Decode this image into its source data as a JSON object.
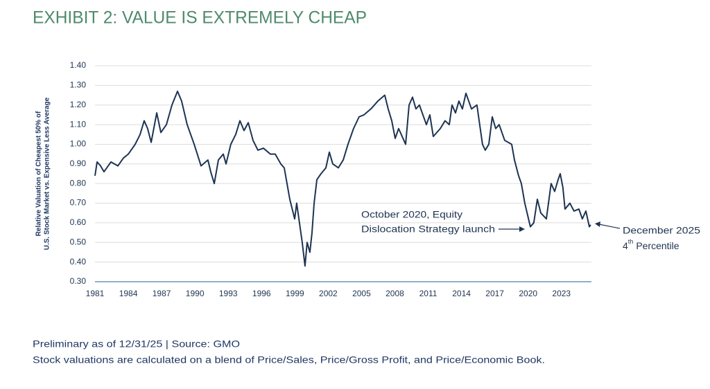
{
  "chart_data": {
    "type": "line",
    "title": "EXHIBIT 2: VALUE IS EXTREMELY CHEAP",
    "y_label": [
      "Relative Valuation of Cheapest 50% of",
      "U.S. Stock Market vs. Expensive Less Average"
    ],
    "color": "#1c3352",
    "grid": true,
    "xlim": [
      1981,
      2025.7
    ],
    "xticks": [
      1981,
      1984,
      1987,
      1990,
      1993,
      1996,
      1999,
      2002,
      2005,
      2008,
      2011,
      2014,
      2017,
      2020,
      2023
    ],
    "ylim": [
      0.3,
      1.4
    ],
    "yticks": [
      {
        "value": 0.3,
        "label": "0.30"
      },
      {
        "value": 0.4,
        "label": "0.40"
      },
      {
        "value": 0.5,
        "label": "0.50"
      },
      {
        "value": 0.6,
        "label": "0.60"
      },
      {
        "value": 0.7,
        "label": "0.70"
      },
      {
        "value": 0.8,
        "label": "0.80"
      },
      {
        "value": 0.9,
        "label": "0.90"
      },
      {
        "value": 1.0,
        "label": "1.00"
      },
      {
        "value": 1.1,
        "label": "1.10"
      },
      {
        "value": 1.2,
        "label": "1.20"
      },
      {
        "value": 1.3,
        "label": "1.30"
      },
      {
        "value": 1.4,
        "label": "1.40"
      }
    ],
    "x": [
      1981.0,
      1981.19,
      1981.5,
      1981.81,
      1982.44,
      1983.06,
      1983.56,
      1984.0,
      1984.62,
      1985.06,
      1985.43,
      1985.74,
      1986.06,
      1986.56,
      1986.93,
      1987.43,
      1987.93,
      1988.43,
      1988.8,
      1989.3,
      1989.93,
      1990.55,
      1991.17,
      1991.42,
      1991.74,
      1992.11,
      1992.55,
      1992.8,
      1993.23,
      1993.67,
      1994.05,
      1994.42,
      1994.8,
      1995.23,
      1995.67,
      1996.17,
      1996.79,
      1997.23,
      1997.73,
      1998.04,
      1998.29,
      1998.54,
      1998.98,
      1999.16,
      1999.41,
      1999.66,
      1999.91,
      2000.1,
      2000.35,
      2000.54,
      2000.73,
      2000.98,
      2001.35,
      2001.79,
      2002.1,
      2002.41,
      2002.91,
      2003.35,
      2003.78,
      2004.28,
      2004.78,
      2005.22,
      2005.84,
      2006.47,
      2007.09,
      2007.4,
      2007.72,
      2008.03,
      2008.34,
      2008.97,
      2009.28,
      2009.59,
      2009.9,
      2010.21,
      2010.84,
      2011.15,
      2011.46,
      2012.09,
      2012.52,
      2012.9,
      2013.15,
      2013.46,
      2013.77,
      2014.08,
      2014.4,
      2014.9,
      2015.39,
      2015.64,
      2015.89,
      2016.14,
      2016.46,
      2016.77,
      2017.08,
      2017.39,
      2017.89,
      2018.52,
      2018.77,
      2019.14,
      2019.39,
      2019.7,
      2020.2,
      2020.51,
      2020.83,
      2021.14,
      2021.64,
      2022.07,
      2022.39,
      2022.7,
      2022.89,
      2023.13,
      2023.32,
      2023.76,
      2024.13,
      2024.57,
      2024.88,
      2025.2,
      2025.51,
      2025.63
    ],
    "values": [
      0.84,
      0.91,
      0.89,
      0.86,
      0.91,
      0.89,
      0.93,
      0.95,
      1.0,
      1.05,
      1.12,
      1.08,
      1.01,
      1.16,
      1.06,
      1.1,
      1.2,
      1.27,
      1.22,
      1.1,
      1.0,
      0.89,
      0.92,
      0.86,
      0.8,
      0.92,
      0.95,
      0.9,
      1.0,
      1.05,
      1.12,
      1.07,
      1.11,
      1.02,
      0.97,
      0.98,
      0.95,
      0.95,
      0.9,
      0.88,
      0.8,
      0.72,
      0.62,
      0.7,
      0.6,
      0.5,
      0.38,
      0.5,
      0.45,
      0.55,
      0.7,
      0.82,
      0.85,
      0.88,
      0.96,
      0.9,
      0.88,
      0.92,
      1.0,
      1.08,
      1.14,
      1.15,
      1.18,
      1.22,
      1.25,
      1.18,
      1.12,
      1.03,
      1.08,
      1.0,
      1.2,
      1.24,
      1.18,
      1.2,
      1.1,
      1.15,
      1.04,
      1.08,
      1.12,
      1.1,
      1.2,
      1.16,
      1.22,
      1.18,
      1.26,
      1.18,
      1.2,
      1.1,
      1.0,
      0.97,
      1.0,
      1.14,
      1.08,
      1.1,
      1.02,
      1.0,
      0.92,
      0.84,
      0.8,
      0.7,
      0.58,
      0.6,
      0.72,
      0.65,
      0.62,
      0.8,
      0.76,
      0.82,
      0.85,
      0.78,
      0.67,
      0.7,
      0.66,
      0.67,
      0.62,
      0.66,
      0.58,
      0.59
    ],
    "annotations": [
      {
        "lines": [
          "October 2020, Equity",
          "Dislocation Strategy launch"
        ]
      },
      {
        "line1": "December 2025",
        "line2": {
          "number": "4",
          "suffix": "th",
          "rest": "Percentile"
        }
      }
    ],
    "footnotes": [
      "Preliminary as of 12/31/25 | Source: GMO",
      "Stock valuations are calculated on a blend of Price/Sales, Price/Gross Profit, and Price/Economic Book."
    ]
  }
}
